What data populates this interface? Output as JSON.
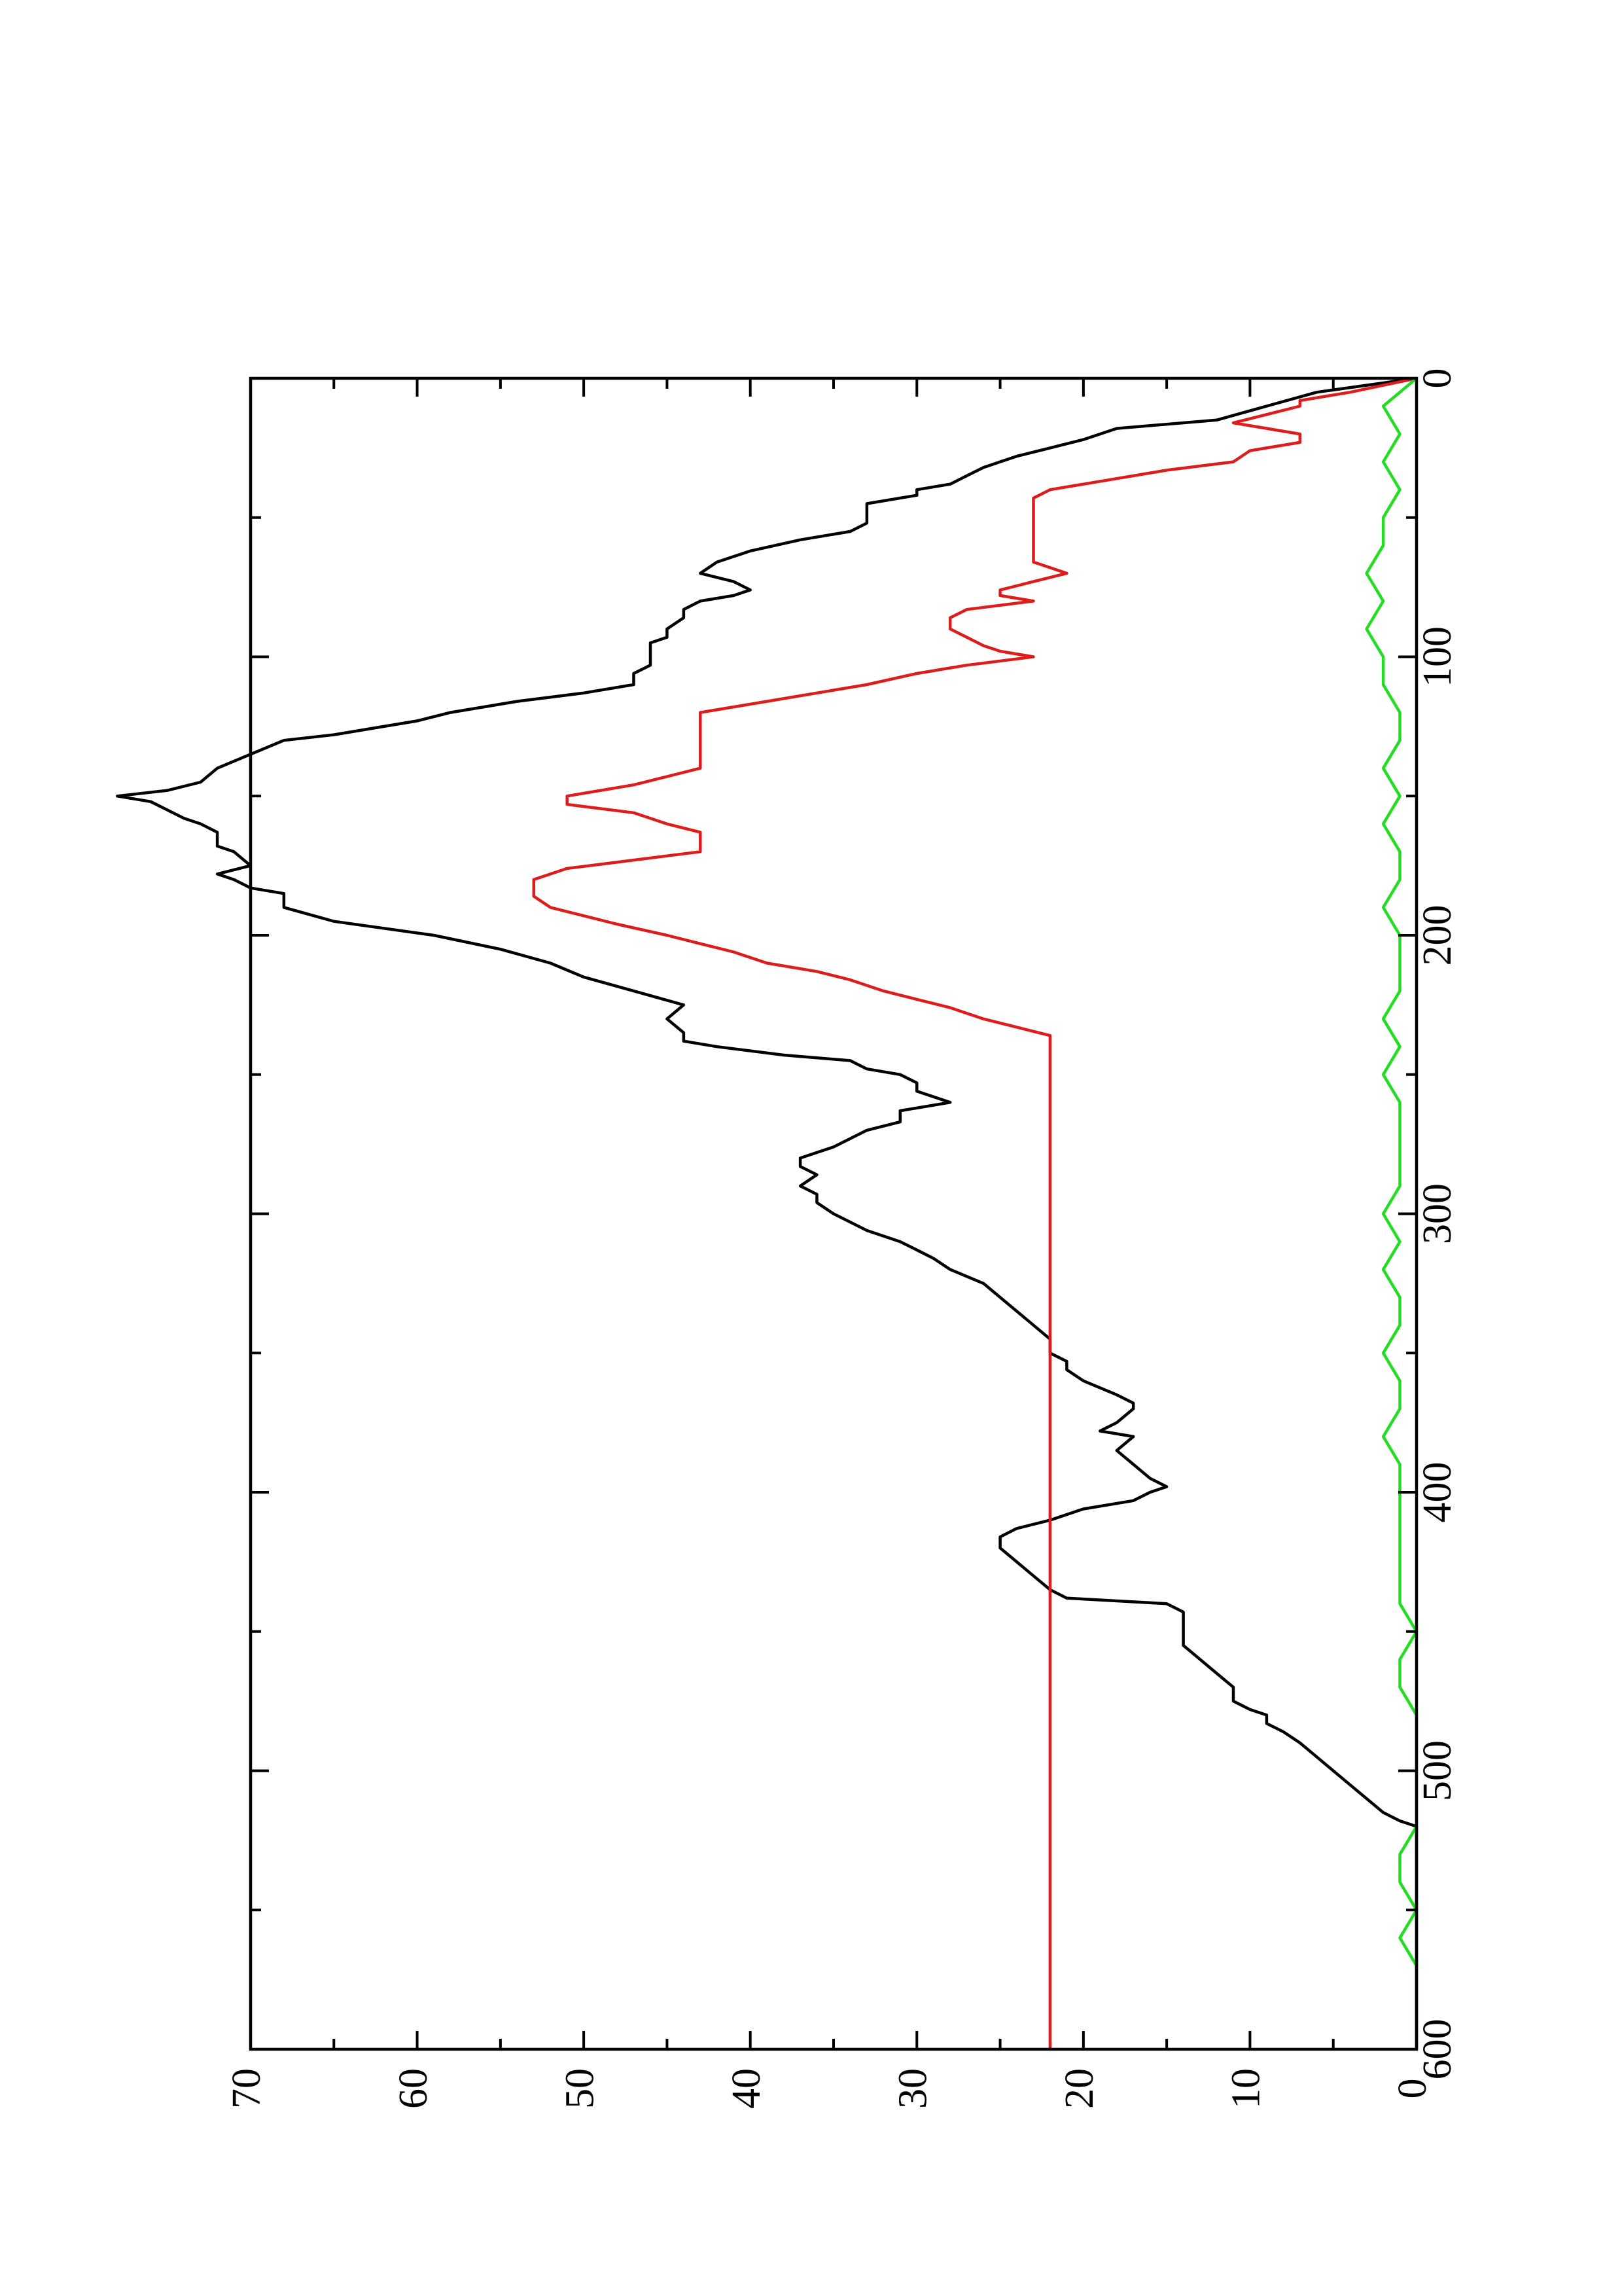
{
  "chart_data": {
    "type": "line",
    "orientation": "rotated-90-ccw",
    "title": "",
    "xlabel": "",
    "ylabel": "",
    "xlim": [
      0,
      600
    ],
    "ylim": [
      0,
      70
    ],
    "x_ticks": [
      0,
      100,
      200,
      300,
      400,
      500,
      600
    ],
    "x_minor_ticks": [
      50,
      150,
      250,
      350,
      450,
      550
    ],
    "y_ticks": [
      0,
      10,
      20,
      30,
      40,
      50,
      60,
      70
    ],
    "y_minor_ticks": [
      5,
      15,
      25,
      35,
      45,
      55,
      65
    ],
    "grid": false,
    "legend": "none",
    "series": [
      {
        "color": "#000000",
        "x": [
          0,
          5,
          10,
          15,
          18,
          22,
          25,
          28,
          32,
          35,
          38,
          40,
          42,
          45,
          50,
          52,
          55,
          58,
          62,
          66,
          70,
          73,
          76,
          78,
          80,
          83,
          86,
          90,
          93,
          95,
          98,
          100,
          103,
          106,
          110,
          113,
          116,
          120,
          123,
          125,
          128,
          130,
          135,
          140,
          145,
          148,
          150,
          152,
          155,
          158,
          160,
          163,
          165,
          168,
          170,
          175,
          178,
          180,
          183,
          185,
          190,
          195,
          200,
          205,
          210,
          215,
          220,
          225,
          230,
          235,
          238,
          240,
          243,
          245,
          248,
          250,
          253,
          256,
          260,
          263,
          267,
          270,
          273,
          276,
          280,
          283,
          286,
          290,
          293,
          296,
          300,
          303,
          306,
          310,
          313,
          316,
          320,
          325,
          330,
          335,
          340,
          345,
          350,
          353,
          356,
          360,
          365,
          368,
          370,
          375,
          378,
          380,
          385,
          390,
          395,
          398,
          400,
          403,
          406,
          410,
          413,
          416,
          420,
          425,
          430,
          435,
          438,
          440,
          443,
          446,
          450,
          455,
          460,
          465,
          470,
          475,
          478,
          480,
          483,
          486,
          490,
          495,
          500,
          505,
          510,
          515,
          518,
          520,
          523,
          526,
          530,
          533,
          536,
          540,
          545,
          550,
          555,
          560,
          565,
          570,
          575,
          580,
          585,
          590,
          595,
          600
        ],
        "y": [
          0,
          6,
          9,
          12,
          18,
          20,
          22,
          24,
          26,
          27,
          28,
          30,
          30,
          33,
          33,
          33,
          34,
          37,
          40,
          42,
          43,
          41,
          40,
          41,
          43,
          44,
          44,
          45,
          45,
          46,
          46,
          46,
          46,
          47,
          47,
          50,
          54,
          58,
          60,
          62,
          65,
          68,
          70,
          72,
          73,
          75,
          78,
          76,
          75,
          74,
          73,
          72,
          72,
          72,
          71,
          70,
          72,
          71,
          70,
          68,
          68,
          65,
          59,
          55,
          52,
          50,
          47,
          44,
          45,
          44,
          44,
          42,
          38,
          34,
          33,
          31,
          30,
          30,
          28,
          31,
          31,
          33,
          34,
          35,
          37,
          37,
          36,
          37,
          36,
          36,
          35,
          34,
          33,
          31,
          30,
          29,
          28,
          26,
          25,
          24,
          23,
          22,
          22,
          21,
          21,
          20,
          18,
          17,
          17,
          18,
          19,
          17,
          18,
          17,
          16,
          15,
          16,
          17,
          20,
          22,
          24,
          25,
          25,
          24,
          23,
          22,
          21,
          15,
          14,
          14,
          14,
          14,
          13,
          12,
          11,
          11,
          10,
          9,
          9,
          8,
          7,
          6,
          5,
          4,
          3,
          2,
          1,
          0,
          0,
          0,
          0,
          0,
          0,
          0,
          0,
          0,
          0,
          0,
          0,
          0,
          0,
          0,
          0,
          0,
          0,
          0
        ]
      },
      {
        "color": "#dd1c1c",
        "x": [
          0,
          5,
          8,
          10,
          13,
          16,
          20,
          23,
          26,
          30,
          33,
          36,
          40,
          43,
          46,
          50,
          53,
          56,
          60,
          63,
          66,
          68,
          70,
          73,
          76,
          78,
          80,
          83,
          86,
          88,
          90,
          93,
          96,
          98,
          100,
          103,
          106,
          110,
          113,
          116,
          120,
          123,
          126,
          130,
          133,
          136,
          140,
          143,
          146,
          150,
          153,
          156,
          160,
          163,
          166,
          170,
          173,
          176,
          180,
          183,
          186,
          190,
          193,
          196,
          200,
          203,
          206,
          210,
          213,
          216,
          220,
          223,
          226,
          230,
          233,
          236,
          240,
          243,
          246,
          250,
          253,
          256,
          260,
          263,
          266,
          270,
          273,
          276,
          280,
          283,
          286,
          290,
          293,
          296,
          300,
          303,
          306,
          310,
          313,
          316,
          320,
          323,
          326,
          330,
          333,
          336,
          340,
          343,
          346,
          350,
          353,
          356,
          360,
          363,
          366,
          370,
          373,
          376,
          380,
          383,
          386,
          390,
          393,
          396,
          400,
          403,
          406,
          410,
          413,
          416,
          420,
          423,
          426,
          430,
          433,
          436,
          440,
          443,
          446,
          450,
          453,
          456,
          460,
          463,
          466,
          470,
          473,
          476,
          480,
          483,
          486,
          490,
          493,
          496,
          500,
          503,
          506,
          510,
          513,
          516,
          520,
          523,
          526,
          530,
          533,
          536,
          540,
          543,
          546,
          550,
          553,
          556,
          560,
          563,
          566,
          570,
          573,
          576,
          580,
          583,
          586,
          590,
          593,
          596,
          600
        ],
        "y": [
          0,
          4,
          7,
          7,
          9,
          11,
          7,
          7,
          10,
          11,
          15,
          18,
          22,
          23,
          23,
          23,
          23,
          23,
          23,
          23,
          23,
          22,
          21,
          23,
          25,
          25,
          23,
          27,
          28,
          28,
          28,
          27,
          26,
          25,
          23,
          27,
          30,
          33,
          36,
          39,
          43,
          43,
          43,
          43,
          43,
          43,
          43,
          45,
          47,
          51,
          51,
          47,
          45,
          43,
          43,
          43,
          47,
          51,
          53,
          53,
          53,
          52,
          50,
          48,
          45,
          43,
          41,
          39,
          36,
          34,
          32,
          30,
          28,
          26,
          24,
          22,
          22,
          22,
          22,
          22,
          22,
          22,
          22,
          22,
          22,
          22,
          22,
          22,
          22,
          22,
          22,
          22,
          22,
          22,
          22,
          22,
          22,
          22,
          22,
          22,
          22,
          22,
          22,
          22,
          22,
          22,
          22,
          22,
          22,
          22,
          22,
          22,
          22,
          22,
          22,
          22,
          22,
          22,
          22,
          22,
          22,
          22,
          22,
          22,
          22,
          22,
          22,
          22,
          22,
          22,
          22,
          22,
          22,
          22,
          22,
          22,
          22,
          22,
          22,
          22,
          22,
          22,
          22,
          22,
          22,
          22,
          22,
          22,
          22,
          22,
          22,
          22,
          22,
          22,
          22,
          22,
          22,
          22,
          22,
          22,
          22,
          22,
          22,
          22,
          22,
          22,
          22,
          22,
          22,
          22,
          22,
          22,
          22,
          22,
          22,
          22,
          22,
          22,
          22,
          22,
          22,
          22,
          22,
          22,
          22
        ]
      },
      {
        "color": "#22dd22",
        "x": [
          0,
          10,
          20,
          30,
          40,
          50,
          60,
          70,
          80,
          90,
          100,
          110,
          120,
          130,
          140,
          150,
          160,
          170,
          180,
          190,
          200,
          210,
          220,
          230,
          240,
          250,
          260,
          270,
          280,
          290,
          300,
          310,
          320,
          330,
          340,
          350,
          360,
          370,
          380,
          390,
          400,
          410,
          420,
          430,
          440,
          450,
          460,
          470,
          480,
          490,
          500,
          510,
          520,
          530,
          540,
          550,
          560,
          570,
          580,
          590,
          600
        ],
        "y": [
          0,
          2,
          1,
          2,
          1,
          2,
          2,
          3,
          2,
          3,
          2,
          2,
          1,
          1,
          2,
          1,
          2,
          1,
          1,
          2,
          1,
          1,
          1,
          2,
          1,
          2,
          1,
          1,
          1,
          1,
          2,
          1,
          2,
          1,
          1,
          2,
          1,
          1,
          2,
          1,
          1,
          1,
          1,
          1,
          1,
          0,
          1,
          1,
          0,
          0,
          0,
          0,
          0,
          1,
          1,
          0,
          1,
          0,
          0,
          0,
          0
        ]
      }
    ]
  }
}
